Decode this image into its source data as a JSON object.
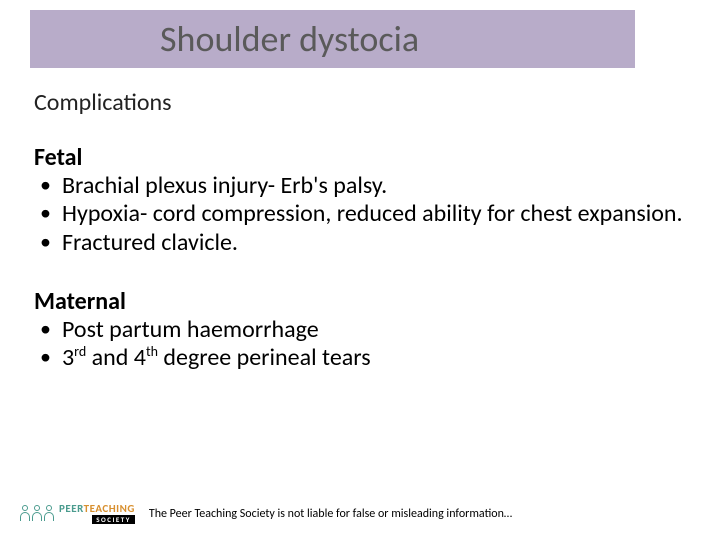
{
  "colors": {
    "title_bar_bg": "#b8acc9",
    "title_text": "#5a5a5a",
    "body_text": "#000000",
    "background": "#ffffff",
    "logo_peer": "#4a9b8e",
    "logo_teaching": "#d89030",
    "logo_society_bg": "#000000",
    "logo_society_fg": "#ffffff"
  },
  "typography": {
    "title_fontsize": 36,
    "body_fontsize": 24,
    "footer_fontsize": 12,
    "font_family": "Calibri"
  },
  "title": "Shoulder dystocia",
  "subheader": "Complications",
  "sections": [
    {
      "heading": "Fetal",
      "items": [
        "Brachial plexus injury- Erb's palsy.",
        "Hypoxia- cord compression, reduced ability for chest expansion.",
        "Fractured clavicle."
      ]
    },
    {
      "heading": "Maternal",
      "items": [
        "Post partum haemorrhage",
        "3rd and 4th degree perineal tears"
      ]
    }
  ],
  "footer": {
    "logo": {
      "part1": "PEER",
      "part2": "TEACHING",
      "part3": "SOCIETY"
    },
    "disclaimer": "The Peer Teaching Society is not liable for false or misleading information…"
  }
}
